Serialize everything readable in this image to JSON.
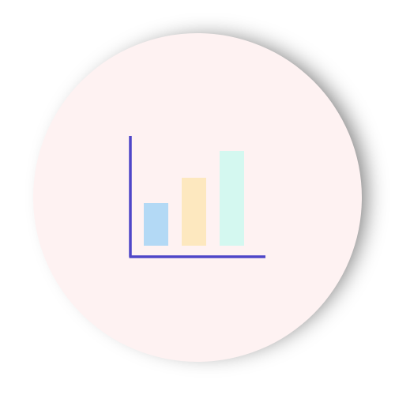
{
  "badge": {
    "icon": "bar-chart-icon",
    "background_color": "#fef2f2",
    "axis_color": "#4f46c8",
    "bars": [
      {
        "color": "#b3d9f5",
        "level": 0.45
      },
      {
        "color": "#fde8bf",
        "level": 0.72
      },
      {
        "color": "#d4f8f0",
        "level": 1.0
      }
    ]
  }
}
